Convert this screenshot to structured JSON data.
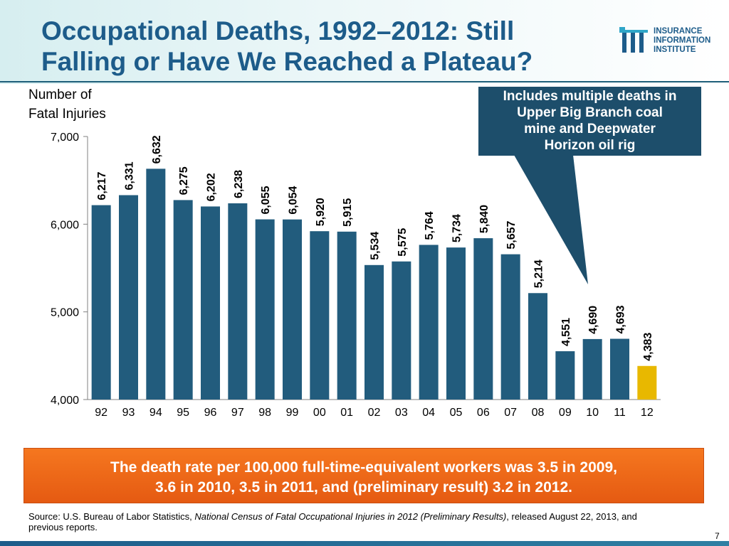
{
  "title": "Occupational Deaths, 1992–2012: Still\nFalling or Have We Reached a Plateau?",
  "logo": {
    "text": "INSURANCE\nINFORMATION\nINSTITUTE"
  },
  "callout": {
    "text": "Includes multiple deaths in\nUpper Big Branch coal\nmine and Deepwater\nHorizon oil rig"
  },
  "orange_box": {
    "text": "The death rate per 100,000 full-time-equivalent workers was 3.5 in 2009,\n3.6 in 2010, 3.5 in 2011, and (preliminary result) 3.2 in 2012."
  },
  "source": {
    "prefix": "Source: U.S. Bureau of Labor Statistics, ",
    "italic": "National Census of Fatal Occupational Injuries in 2012 (Preliminary Results)",
    "suffix": ", released August 22, 2013, and previous reports."
  },
  "page_number": "7",
  "colors": {
    "bar": "#225c7d",
    "highlight_bar": "#e8b800",
    "title": "#1d5c8a",
    "orange": "#ef6a1a"
  },
  "chart_data": {
    "type": "bar",
    "ylabel": "Number of\nFatal Injuries",
    "categories": [
      "92",
      "93",
      "94",
      "95",
      "96",
      "97",
      "98",
      "99",
      "00",
      "01",
      "02",
      "03",
      "04",
      "05",
      "06",
      "07",
      "08",
      "09",
      "10",
      "11",
      "12"
    ],
    "values": [
      6217,
      6331,
      6632,
      6275,
      6202,
      6238,
      6055,
      6054,
      5920,
      5915,
      5534,
      5575,
      5764,
      5734,
      5840,
      5657,
      5214,
      4551,
      4690,
      4693,
      4383
    ],
    "value_labels": [
      "6,217",
      "6,331",
      "6,632",
      "6,275",
      "6,202",
      "6,238",
      "6,055",
      "6,054",
      "5,920",
      "5,915",
      "5,534",
      "5,575",
      "5,764",
      "5,734",
      "5,840",
      "5,657",
      "5,214",
      "4,551",
      "4,690",
      "4,693",
      "4,383"
    ],
    "highlight_category": "12",
    "ylim": [
      4000,
      7000
    ],
    "yticks": [
      4000,
      5000,
      6000,
      7000
    ],
    "ytick_labels": [
      "4,000",
      "5,000",
      "6,000",
      "7,000"
    ],
    "grid": false
  }
}
